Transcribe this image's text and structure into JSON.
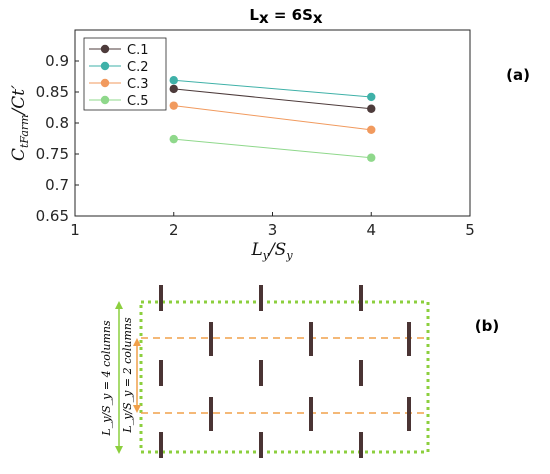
{
  "chart_data": {
    "type": "line",
    "title_base": "L",
    "title_sub_x": "x",
    "title_eq": " = 6S",
    "panel_a_label": "(a)",
    "ylabel_main": "C",
    "ylabel_sub": "tFarm",
    "ylabel_div": "/Ct′",
    "xlabel_main": "L",
    "xlabel_sub_y": "y",
    "xlabel_div": "/S",
    "xlim": [
      1,
      5
    ],
    "ylim": [
      0.65,
      0.95
    ],
    "xticks": [
      1,
      2,
      3,
      4,
      5
    ],
    "xtick_labels": [
      "1",
      "2",
      "3",
      "4",
      "5"
    ],
    "yticks": [
      0.65,
      0.7,
      0.75,
      0.8,
      0.85,
      0.9
    ],
    "ytick_labels": [
      "0.65",
      "0.7",
      "0.75",
      "0.8",
      "0.85",
      "0.9"
    ],
    "grid": false,
    "legend_position": "top-left",
    "x": [
      2,
      4
    ],
    "series": [
      {
        "name": "C.1",
        "values": [
          0.855,
          0.823
        ],
        "color": "#4d3b3b"
      },
      {
        "name": "C.2",
        "values": [
          0.869,
          0.842
        ],
        "color": "#3fb1a8"
      },
      {
        "name": "C.3",
        "values": [
          0.828,
          0.789
        ],
        "color": "#f19a5e"
      },
      {
        "name": "C.5",
        "values": [
          0.774,
          0.744
        ],
        "color": "#8fd88b"
      }
    ]
  },
  "diagram": {
    "panel_b_label": "(b)",
    "annotation_4_columns": "L_y/S_y = 4 columns",
    "annotation_2_columns": "L_y/S_y = 2 columns",
    "colors": {
      "turbine": "#4a3434",
      "boundary": "#8ccf3e",
      "dashed_line": "#f0a04a"
    }
  }
}
